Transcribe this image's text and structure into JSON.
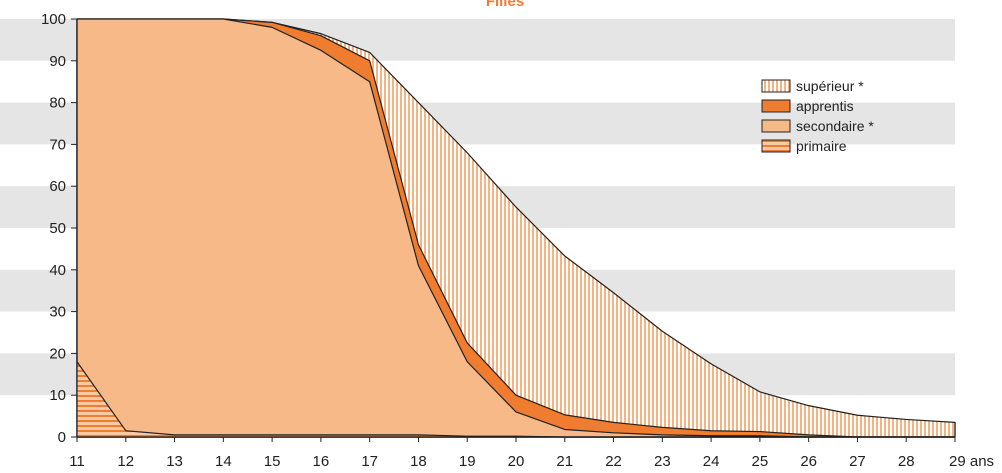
{
  "chart_data": {
    "type": "area",
    "title": "Filles",
    "x_unit": "ans",
    "x": [
      11,
      12,
      13,
      14,
      15,
      16,
      17,
      18,
      19,
      20,
      21,
      22,
      23,
      24,
      25,
      26,
      27,
      28,
      29
    ],
    "x_tick_labels": [
      "11",
      "12",
      "13",
      "14",
      "15",
      "16",
      "17",
      "18",
      "19",
      "20",
      "21",
      "22",
      "23",
      "24",
      "25",
      "26",
      "27",
      "28",
      "29 ans"
    ],
    "y_ticks": [
      0,
      10,
      20,
      30,
      40,
      50,
      60,
      70,
      80,
      90,
      100
    ],
    "ylim": [
      0,
      100
    ],
    "stacked": true,
    "legend_position": "right",
    "series": [
      {
        "name": "primaire",
        "pattern": "horizontal-stripes",
        "values": [
          18,
          1.5,
          0.5,
          0.5,
          0.5,
          0.5,
          0.5,
          0.5,
          0.2,
          0.2,
          0,
          0,
          0,
          0,
          0,
          0,
          0,
          0,
          0
        ]
      },
      {
        "name": "secondaire *",
        "pattern": "solid",
        "values": [
          82,
          98.5,
          99.5,
          99.5,
          97.5,
          92.0,
          84.5,
          40.5,
          17.8,
          5.8,
          1.8,
          1.0,
          0.5,
          0.3,
          0.3,
          0,
          0,
          0,
          0
        ]
      },
      {
        "name": "apprentis",
        "pattern": "solid",
        "values": [
          0,
          0,
          0,
          0,
          1.2,
          3.5,
          5.0,
          5.0,
          4.5,
          4.0,
          3.5,
          2.5,
          1.8,
          1.2,
          1.0,
          0.5,
          0,
          0,
          0
        ]
      },
      {
        "name": "supérieur *",
        "pattern": "vertical-stripes",
        "values": [
          0,
          0,
          0,
          0,
          0,
          0.5,
          2.0,
          34.0,
          45.5,
          45.0,
          38.0,
          31.0,
          23.0,
          16.0,
          9.5,
          7.0,
          5.2,
          4.2,
          3.5
        ]
      }
    ],
    "legend_order": [
      "supérieur *",
      "apprentis",
      "secondaire *",
      "primaire"
    ]
  },
  "colors": {
    "light_orange": "#F7B987",
    "dark_orange": "#F07C30",
    "stripe_light": "#F9C9A3",
    "stripe_dark": "#F07C30",
    "band": "#E5E5E5",
    "line": "#222222"
  }
}
